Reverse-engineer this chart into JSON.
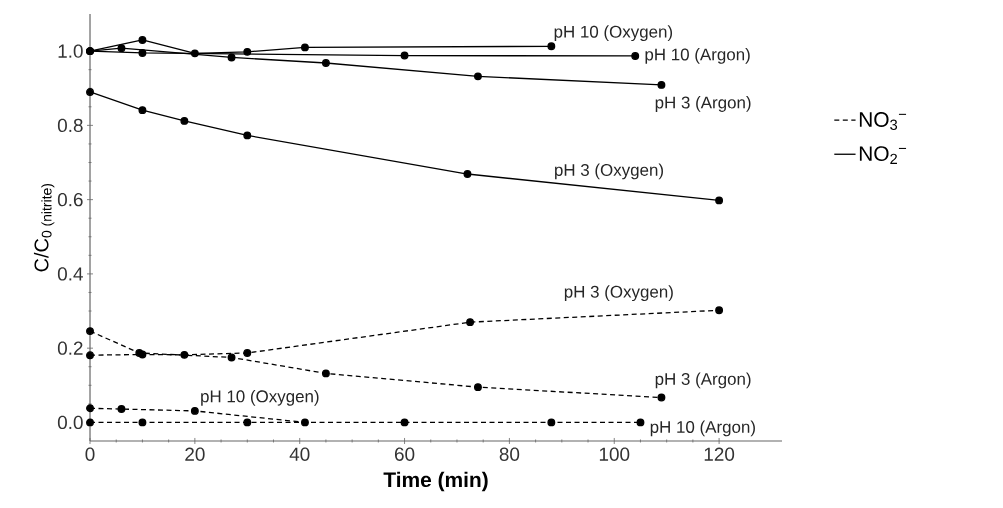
{
  "chart_data": {
    "type": "line",
    "xlabel": "Time (min)",
    "ylabel": "C/C$_{0 (nitrite)}$",
    "xlim": [
      0,
      132
    ],
    "ylim": [
      -0.05,
      1.1
    ],
    "xticks": [
      0,
      20,
      40,
      60,
      80,
      100,
      120
    ],
    "yticks": [
      {
        "value": 0,
        "label": "0.0"
      },
      {
        "value": 0.2,
        "label": "0.2"
      },
      {
        "value": 0.4,
        "label": "0.4"
      },
      {
        "value": 0.6,
        "label": "0.6"
      },
      {
        "value": 0.8,
        "label": "0.8"
      },
      {
        "value": 1,
        "label": "1.0"
      }
    ],
    "grid": false,
    "legend": "right",
    "marker": "circle",
    "series": [
      {
        "name": "NO$_{3}$$^{−}$",
        "color": "#000000",
        "line_style": "dashed",
        "x": [
          0,
          10,
          18,
          30,
          72.5,
          120
        ],
        "values": [
          0.181,
          0.183,
          0.182,
          0.187,
          0.27,
          0.302
        ]
      },
      {
        "color": "#000000",
        "line_style": "dashed",
        "x": [
          0,
          9.4,
          27,
          45,
          74,
          109
        ],
        "values": [
          0.246,
          0.187,
          0.175,
          0.132,
          0.095,
          0.067
        ]
      },
      {
        "color": "#000000",
        "line_style": "dashed",
        "x": [
          0,
          6,
          20,
          41
        ],
        "values": [
          0.038,
          0.036,
          0.031,
          0.0
        ]
      },
      {
        "color": "#000000",
        "line_style": "dashed",
        "x": [
          0,
          10,
          30,
          60,
          88,
          105
        ],
        "values": [
          0.0,
          0.0,
          0.0,
          0.0,
          0.0,
          0.0
        ]
      },
      {
        "name": "NO$_{2}$$^{−}$",
        "color": "#000000",
        "line_style": "solid",
        "x": [
          0,
          10,
          20,
          30,
          41,
          88
        ],
        "values": [
          1.0,
          1.03,
          0.994,
          0.998,
          1.01,
          1.013
        ]
      },
      {
        "color": "#000000",
        "line_style": "solid",
        "x": [
          0,
          10,
          60,
          104
        ],
        "values": [
          1.0,
          0.995,
          0.988,
          0.987
        ]
      },
      {
        "color": "#000000",
        "line_style": "solid",
        "x": [
          0,
          6,
          27,
          45,
          74,
          109
        ],
        "values": [
          1.0,
          1.008,
          0.983,
          0.968,
          0.932,
          0.909
        ]
      },
      {
        "color": "#000000",
        "line_style": "solid",
        "x": [
          0,
          10,
          18,
          30,
          72,
          120
        ],
        "values": [
          0.89,
          0.841,
          0.812,
          0.773,
          0.669,
          0.598
        ]
      }
    ],
    "annotations": [
      {
        "text": "pH 10 (Oxygen)",
        "x": 88,
        "y": 1.013
      },
      {
        "text": "pH 10 (Argon)",
        "x": 104,
        "y": 0.987
      },
      {
        "text": "pH 3 (Argon)",
        "x": 109,
        "y": 0.909
      },
      {
        "text": "pH 3 (Oxygen)",
        "x": 99,
        "y": 0.63
      },
      {
        "text": "pH 3 (Oxygen)",
        "x": 120,
        "y": 0.302
      },
      {
        "text": "pH 3 (Argon)",
        "x": 109,
        "y": 0.067
      },
      {
        "text": "pH 10 (Oxygen)",
        "x": 20,
        "y": 0.031
      },
      {
        "text": "pH 10 (Argon)",
        "x": 105,
        "y": 0.0
      }
    ]
  }
}
